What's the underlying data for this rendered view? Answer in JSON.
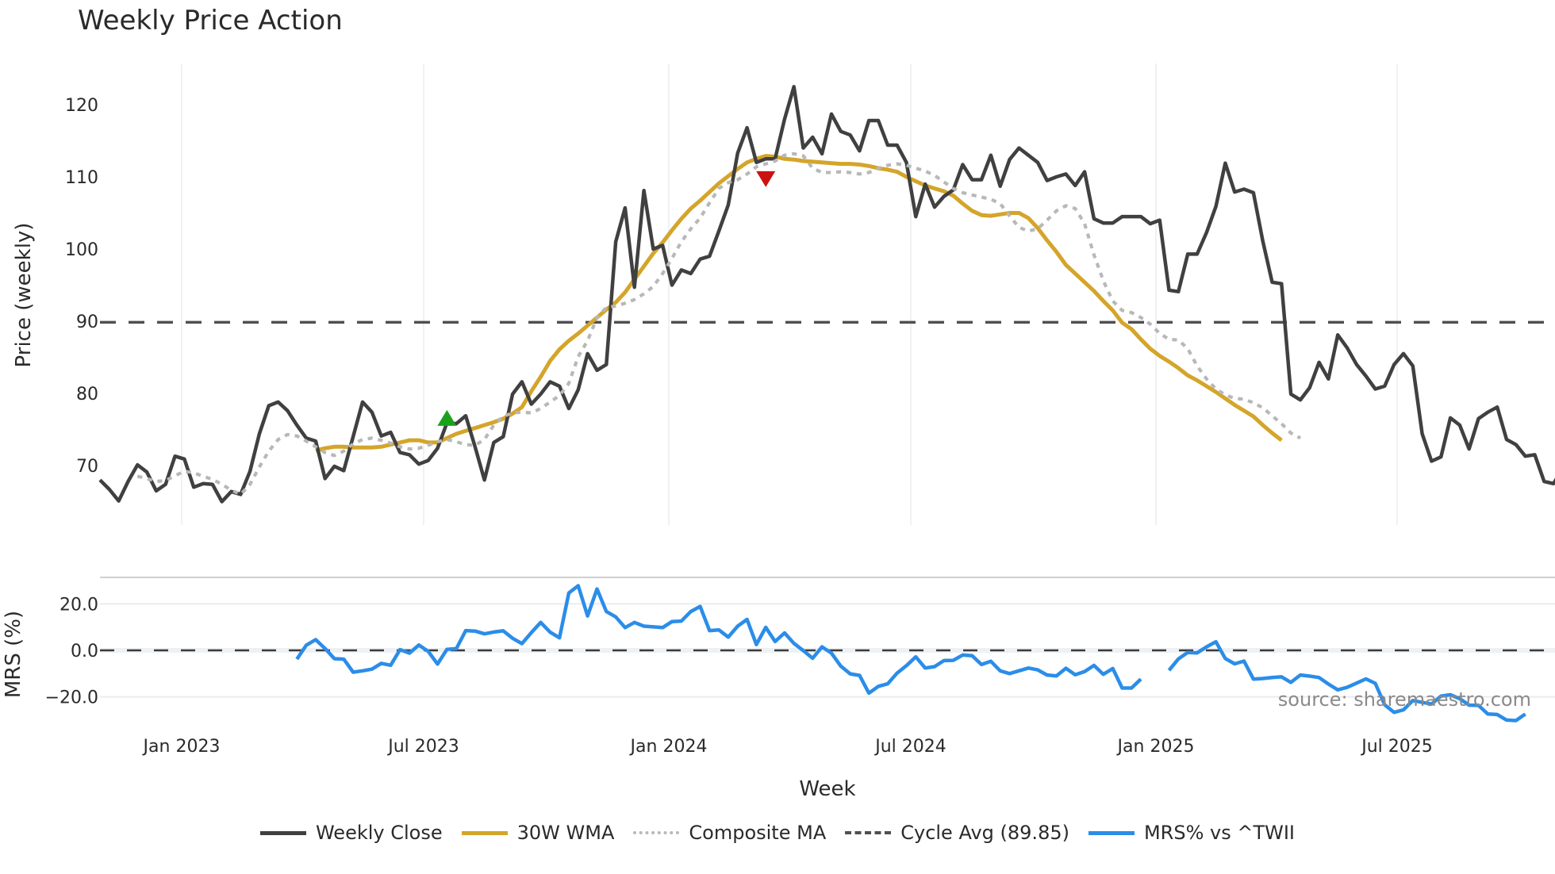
{
  "title": "Weekly Price Action",
  "source_text": "source: sharemaestro.com",
  "colors": {
    "close": "#404040",
    "wma": "#d4a52a",
    "composite": "#b8b8b8",
    "cycle": "#505050",
    "mrs": "#2b8de8",
    "buy_marker": "#1aa31a",
    "sell_marker": "#cc1111",
    "grid": "#e8edf2"
  },
  "legend": [
    {
      "label": "Weekly Close",
      "style": "solid",
      "color": "#404040"
    },
    {
      "label": "30W WMA",
      "style": "solid",
      "color": "#d4a52a"
    },
    {
      "label": "Composite MA",
      "style": "dotted",
      "color": "#b8b8b8"
    },
    {
      "label": "Cycle Avg (89.85)",
      "style": "dashed",
      "color": "#505050"
    },
    {
      "label": "MRS% vs ^TWII",
      "style": "solid",
      "color": "#2b8de8"
    }
  ],
  "chart_data": [
    {
      "type": "line",
      "title": "Weekly Price Action",
      "xlabel": "Week",
      "ylabel": "Price (weekly)",
      "x_ticks": [
        "Jan 2023",
        "Jul 2023",
        "Jan 2024",
        "Jul 2024",
        "Jan 2025",
        "Jul 2025"
      ],
      "y_ticks": [
        70,
        80,
        90,
        100,
        110,
        120
      ],
      "ylim": [
        61.5,
        125.5
      ],
      "grid": true,
      "legend_position": "bottom",
      "start_week": "2022-11-07",
      "hlines": [
        {
          "name": "Cycle Avg (89.85)",
          "value": 89.85,
          "style": "dashed"
        }
      ],
      "markers": [
        {
          "type": "buy",
          "shape": "triangle-up",
          "week_index": 37,
          "value": 76.5
        },
        {
          "type": "sell",
          "shape": "triangle-down",
          "week_index": 71,
          "value": 109.8
        }
      ],
      "series": [
        {
          "name": "Weekly Close",
          "values": [
            68,
            66.7,
            65.1,
            67.8,
            70.1,
            69.1,
            66.5,
            67.4,
            71.3,
            70.9,
            67.0,
            67.5,
            67.4,
            65.0,
            66.4,
            66.0,
            69.2,
            74.4,
            78.3,
            78.8,
            77.6,
            75.6,
            73.8,
            73.4,
            68.2,
            69.9,
            69.3,
            74.0,
            78.8,
            77.4,
            74.1,
            74.6,
            71.8,
            71.5,
            70.2,
            70.7,
            72.4,
            75.9,
            75.8,
            76.9,
            72.6,
            68.0,
            73.2,
            74.0,
            79.9,
            81.6,
            78.5,
            79.9,
            81.6,
            81.0,
            77.9,
            80.5,
            85.5,
            83.2,
            84.0,
            101.0,
            105.7,
            94.7,
            108.1,
            100.0,
            100.5,
            95.0,
            97.1,
            96.6,
            98.6,
            99.0,
            102.5,
            106.1,
            113.3,
            116.8,
            112.0,
            112.5,
            112.5,
            118.0,
            122.5,
            114.0,
            115.5,
            113.2,
            118.7,
            116.3,
            115.8,
            113.6,
            117.8,
            117.8,
            114.4,
            114.4,
            112.0,
            104.5,
            109.0,
            105.8,
            107.3,
            108.2,
            111.7,
            109.6,
            109.6,
            113.0,
            108.7,
            112.4,
            114.0,
            113.0,
            112.0,
            109.5,
            110.0,
            110.4,
            108.8,
            110.7,
            104.2,
            103.6,
            103.6,
            104.5,
            104.5,
            104.5,
            103.5,
            104.0,
            94.3,
            94.1,
            99.3,
            99.3,
            102.3,
            105.9,
            111.9,
            107.9,
            108.3,
            107.8,
            101.1,
            95.4,
            95.2,
            79.9,
            79.1,
            80.8,
            84.3,
            82.0,
            88.1,
            86.3,
            84.0,
            82.4,
            80.6,
            81.0,
            84.0,
            85.5,
            83.8,
            74.4,
            70.6,
            71.2,
            76.6,
            75.6,
            72.3,
            76.5,
            77.4,
            78.1,
            73.6,
            72.9,
            71.3,
            71.5,
            67.8,
            67.5,
            69.6
          ]
        },
        {
          "name": "30W WMA",
          "start_index": 23,
          "values": [
            72.1,
            72.4,
            72.6,
            72.6,
            72.5,
            72.5,
            72.5,
            72.6,
            72.9,
            73.2,
            73.5,
            73.5,
            73.2,
            73.2,
            73.8,
            74.4,
            74.8,
            75.2,
            75.6,
            76.0,
            76.5,
            77.2,
            78.1,
            80.3,
            82.3,
            84.5,
            86.1,
            87.3,
            88.3,
            89.4,
            90.5,
            91.6,
            92.6,
            94.0,
            95.8,
            97.6,
            99.4,
            100.9,
            102.6,
            104.2,
            105.6,
            106.7,
            107.9,
            109.1,
            110.1,
            111.1,
            112.0,
            112.5,
            112.9,
            112.8,
            112.5,
            112.4,
            112.2,
            112.1,
            112.0,
            111.9,
            111.8,
            111.8,
            111.7,
            111.5,
            111.2,
            111.0,
            110.7,
            110.0,
            109.4,
            108.8,
            108.4,
            108.0,
            107.4,
            106.3,
            105.3,
            104.7,
            104.6,
            104.8,
            105.0,
            105.0,
            104.3,
            102.9,
            101.2,
            99.6,
            97.8,
            96.6,
            95.4,
            94.2,
            92.8,
            91.5,
            89.8,
            88.9,
            87.5,
            86.2,
            85.2,
            84.4,
            83.5,
            82.5,
            81.8,
            81.0,
            80.2,
            79.3,
            78.4,
            77.6,
            76.8,
            75.6,
            74.5,
            73.5
          ]
        },
        {
          "name": "Composite MA",
          "start_index": 4,
          "values": [
            68.5,
            68.2,
            67.8,
            67.9,
            68.6,
            69.2,
            69.0,
            68.5,
            68.1,
            67.4,
            66.6,
            66.0,
            67.4,
            69.8,
            72.0,
            73.6,
            74.3,
            74.1,
            73.4,
            72.6,
            71.8,
            71.4,
            72.0,
            73.0,
            73.6,
            73.8,
            73.5,
            73.1,
            72.6,
            72.3,
            72.4,
            72.8,
            73.3,
            73.6,
            73.3,
            72.9,
            72.8,
            73.6,
            75.6,
            76.8,
            77.3,
            77.4,
            77.3,
            77.9,
            78.8,
            79.7,
            81.4,
            85.1,
            87.3,
            90.5,
            91.9,
            92.1,
            92.5,
            93.0,
            93.8,
            94.8,
            96.6,
            98.7,
            101.0,
            102.8,
            104.3,
            106.4,
            108.4,
            109.2,
            109.6,
            110.4,
            111.4,
            111.8,
            112.2,
            113.0,
            113.2,
            112.9,
            111.2,
            110.6,
            110.6,
            110.7,
            110.6,
            110.4,
            110.6,
            111.2,
            111.6,
            111.8,
            111.6,
            111.2,
            110.8,
            110.2,
            109.3,
            108.4,
            107.8,
            107.5,
            107.2,
            106.9,
            106.3,
            104.6,
            103.0,
            102.5,
            102.8,
            104.0,
            105.3,
            106.0,
            105.6,
            103.5,
            99.2,
            95.6,
            92.8,
            91.5,
            91.2,
            90.5,
            89.6,
            88.3,
            87.5,
            87.4,
            86.2,
            83.8,
            82.0,
            80.6,
            79.8,
            79.3,
            79.2,
            78.7,
            78.0,
            76.9,
            75.8,
            74.5,
            73.8
          ]
        },
        {
          "name": "MRS% vs ^TWII",
          "panel": "lower",
          "start_index": 21,
          "ylim": [
            -30,
            32
          ],
          "y_ticks": [
            -20.0,
            0.0,
            20.0
          ],
          "ylabel": "MRS (%)",
          "hline": 0.0,
          "gap_after_index": 96,
          "values": [
            -3.8,
            2.2,
            4.6,
            0.8,
            -3.6,
            -3.8,
            -9.4,
            -8.8,
            -8.1,
            -5.6,
            -6.4,
            0.3,
            -1.2,
            2.3,
            -0.4,
            -5.9,
            0.4,
            0.7,
            8.5,
            8.3,
            7.1,
            7.9,
            8.4,
            5.2,
            2.9,
            7.6,
            12.0,
            7.8,
            5.4,
            24.7,
            27.8,
            14.8,
            26.4,
            16.7,
            14.4,
            9.8,
            12.0,
            10.4,
            10.1,
            9.8,
            12.4,
            12.6,
            16.7,
            18.9,
            8.5,
            8.8,
            5.7,
            10.4,
            13.3,
            2.5,
            9.9,
            3.8,
            7.5,
            3.0,
            -0.1,
            -3.4,
            1.5,
            -1.2,
            -6.8,
            -10.1,
            -10.8,
            -18.4,
            -15.5,
            -14.4,
            -9.8,
            -6.6,
            -2.8,
            -7.6,
            -7.0,
            -4.4,
            -4.3,
            -2.0,
            -2.3,
            -6.1,
            -4.7,
            -8.8,
            -10.0,
            -8.8,
            -7.6,
            -8.4,
            -10.6,
            -11.0,
            -7.7,
            -10.5,
            -9.1,
            -6.5,
            -10.3,
            -7.8,
            -16.2,
            -16.2,
            -12.4,
            null,
            null,
            -8.6,
            -3.7,
            -0.9,
            -1.1,
            1.5,
            3.7,
            -3.5,
            -5.8,
            -4.6,
            -12.4,
            -12.1,
            -11.7,
            -11.4,
            -13.8,
            -10.6,
            -11.1,
            -11.7,
            -14.5,
            -17.0,
            -15.9,
            -14.1,
            -12.3,
            -14.2,
            -23.4,
            -26.7,
            -25.6,
            -21.6,
            -22.4,
            -23.1,
            -19.7,
            -19.1,
            -20.8,
            -23.6,
            -23.7,
            -27.4,
            -27.6,
            -30.0,
            -30.2,
            -27.4
          ]
        }
      ]
    }
  ],
  "upper_axis": {
    "ylabel": "Price (weekly)",
    "ticks": [
      "70",
      "80",
      "90",
      "100",
      "110",
      "120"
    ]
  },
  "lower_axis": {
    "ylabel": "MRS (%)",
    "ticks": [
      "20.0",
      "0.0",
      "−20.0"
    ]
  },
  "x_axis": {
    "title": "Week",
    "ticks": [
      "Jan 2023",
      "Jul 2023",
      "Jan 2024",
      "Jul 2024",
      "Jan 2025",
      "Jul 2025"
    ]
  }
}
